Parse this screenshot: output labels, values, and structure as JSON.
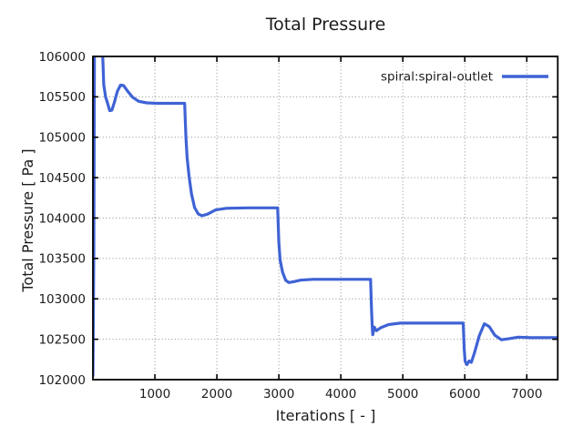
{
  "chart_data": {
    "type": "line",
    "title": "Total Pressure",
    "xlabel": "Iterations [ - ]",
    "ylabel": "Total Pressure [ Pa ]",
    "xlim": [
      0,
      7500
    ],
    "ylim": [
      102000,
      106000
    ],
    "xticks": [
      1000,
      2000,
      3000,
      4000,
      5000,
      6000,
      7000
    ],
    "yticks": [
      102000,
      102500,
      103000,
      103500,
      104000,
      104500,
      105000,
      105500,
      106000
    ],
    "grid": "dotted",
    "legend_position": "top-right-inside",
    "series": [
      {
        "name": "spiral:spiral-outlet",
        "color": "#3f63d5",
        "points": [
          [
            0,
            102050
          ],
          [
            15,
            103600
          ],
          [
            28,
            106900
          ],
          [
            130,
            106900
          ],
          [
            152,
            106150
          ],
          [
            175,
            105650
          ],
          [
            205,
            105500
          ],
          [
            235,
            105425
          ],
          [
            270,
            105330
          ],
          [
            305,
            105335
          ],
          [
            345,
            105430
          ],
          [
            395,
            105570
          ],
          [
            445,
            105645
          ],
          [
            495,
            105640
          ],
          [
            555,
            105575
          ],
          [
            640,
            105495
          ],
          [
            740,
            105445
          ],
          [
            870,
            105425
          ],
          [
            1050,
            105420
          ],
          [
            1480,
            105420
          ],
          [
            1500,
            105000
          ],
          [
            1520,
            104750
          ],
          [
            1550,
            104520
          ],
          [
            1590,
            104300
          ],
          [
            1640,
            104130
          ],
          [
            1700,
            104050
          ],
          [
            1760,
            104028
          ],
          [
            1850,
            104048
          ],
          [
            1980,
            104100
          ],
          [
            2150,
            104120
          ],
          [
            2500,
            104126
          ],
          [
            2980,
            104126
          ],
          [
            3000,
            103700
          ],
          [
            3020,
            103480
          ],
          [
            3060,
            103330
          ],
          [
            3110,
            103230
          ],
          [
            3160,
            103202
          ],
          [
            3240,
            103212
          ],
          [
            3350,
            103232
          ],
          [
            3550,
            103242
          ],
          [
            4480,
            103242
          ],
          [
            4495,
            102880
          ],
          [
            4508,
            102640
          ],
          [
            4515,
            102556
          ],
          [
            4540,
            102650
          ],
          [
            4575,
            102606
          ],
          [
            4650,
            102646
          ],
          [
            4770,
            102682
          ],
          [
            4960,
            102700
          ],
          [
            5975,
            102700
          ],
          [
            5990,
            102380
          ],
          [
            6005,
            102225
          ],
          [
            6035,
            102186
          ],
          [
            6070,
            102232
          ],
          [
            6105,
            102214
          ],
          [
            6155,
            102330
          ],
          [
            6235,
            102545
          ],
          [
            6315,
            102692
          ],
          [
            6395,
            102656
          ],
          [
            6485,
            102550
          ],
          [
            6590,
            102494
          ],
          [
            6710,
            102506
          ],
          [
            6860,
            102526
          ],
          [
            7060,
            102520
          ],
          [
            7500,
            102521
          ]
        ]
      }
    ]
  },
  "colors": {
    "background": "#ffffff",
    "grid": "#8f8f8f",
    "axis": "#000000",
    "text": "#1c1c1c"
  }
}
